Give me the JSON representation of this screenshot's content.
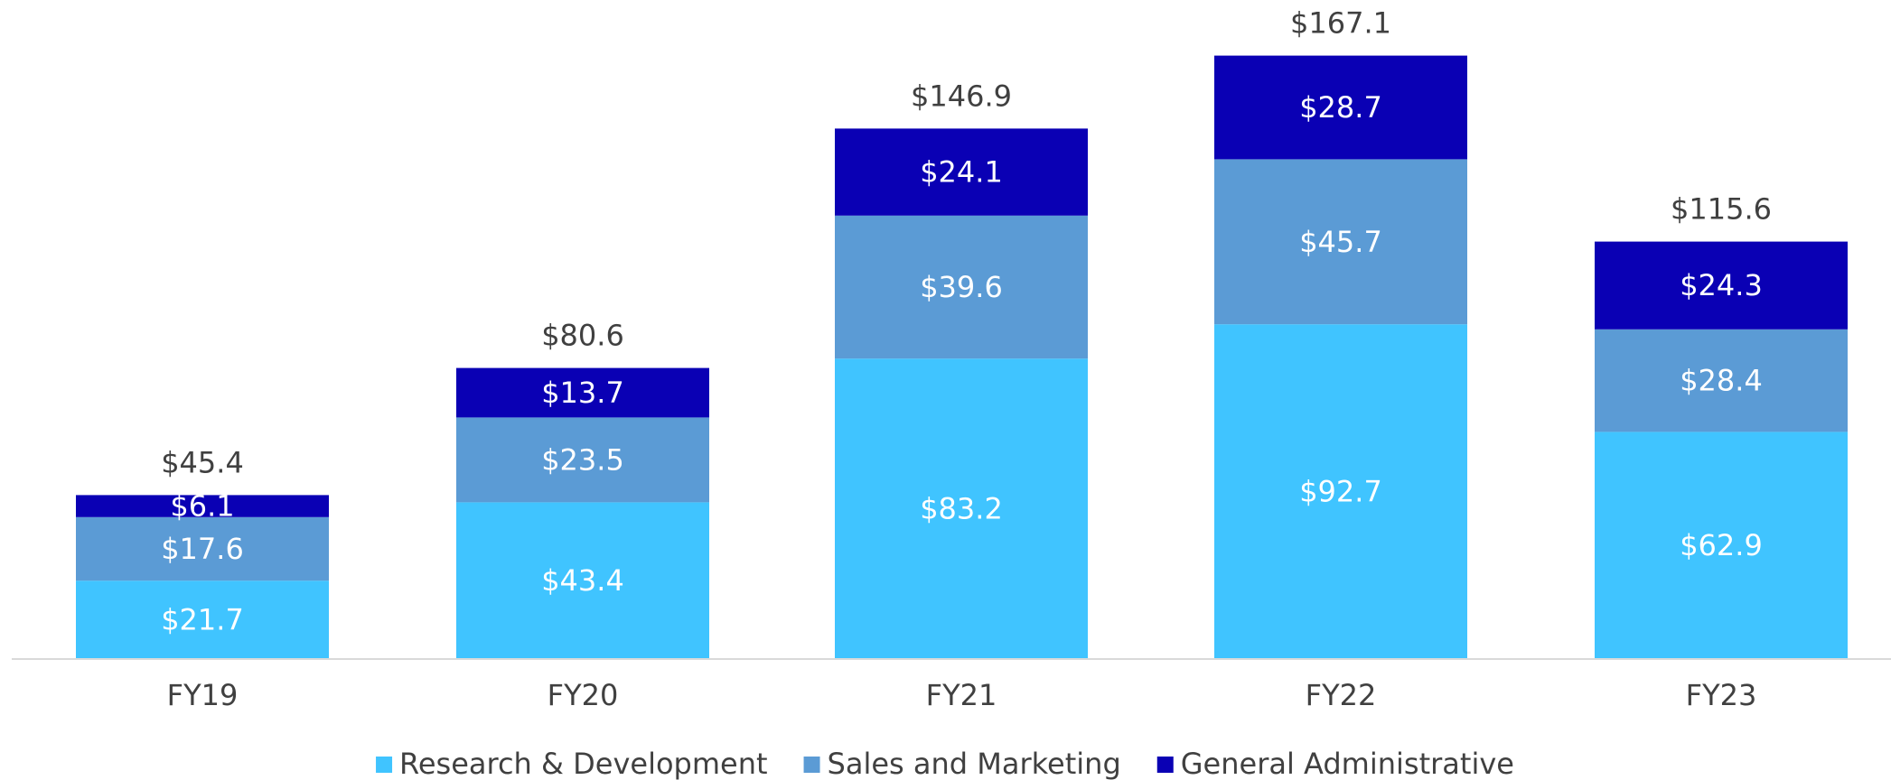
{
  "chart_data": {
    "type": "stacked_bar",
    "categories": [
      "FY19",
      "FY20",
      "FY21",
      "FY22",
      "FY23"
    ],
    "series": [
      {
        "name": "Research & Development",
        "color": "#40C4FF",
        "values": [
          21.7,
          43.4,
          83.2,
          92.7,
          62.9
        ],
        "value_labels": [
          "$21.7",
          "$43.4",
          "$83.2",
          "$92.7",
          "$62.9"
        ]
      },
      {
        "name": "Sales and Marketing",
        "color": "#5B9BD5",
        "values": [
          17.6,
          23.5,
          39.6,
          45.7,
          28.4
        ],
        "value_labels": [
          "$17.6",
          "$23.5",
          "$39.6",
          "$45.7",
          "$28.4"
        ]
      },
      {
        "name": "General Administrative",
        "color": "#0A00B4",
        "values": [
          6.1,
          13.7,
          24.1,
          28.7,
          24.3
        ],
        "value_labels": [
          "$6.1",
          "$13.7",
          "$24.1",
          "$28.7",
          "$24.3"
        ]
      }
    ],
    "totals": {
      "values": [
        45.4,
        80.6,
        146.9,
        167.1,
        115.6
      ],
      "value_labels": [
        "$45.4",
        "$80.6",
        "$146.9",
        "$167.1",
        "$115.6"
      ]
    },
    "ylim": [
      0,
      180
    ],
    "legend": "bottom"
  }
}
